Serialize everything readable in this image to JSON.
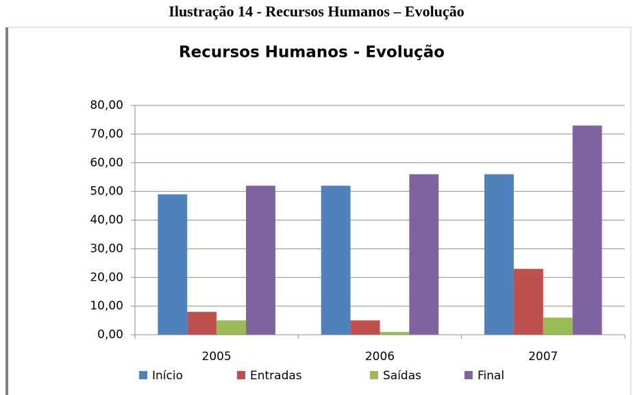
{
  "caption": "Ilustração 14 - Recursos Humanos – Evolução",
  "chart_data": {
    "type": "bar",
    "title": "Recursos Humanos - Evolução",
    "categories": [
      "2005",
      "2006",
      "2007"
    ],
    "series": [
      {
        "name": "Início",
        "color": "#4f81bd",
        "values": [
          49,
          52,
          56
        ]
      },
      {
        "name": "Entradas",
        "color": "#c0504d",
        "values": [
          8,
          5,
          23
        ]
      },
      {
        "name": "Saídas",
        "color": "#9bbb59",
        "values": [
          5,
          1,
          6
        ]
      },
      {
        "name": "Final",
        "color": "#8064a2",
        "values": [
          52,
          56,
          73
        ]
      }
    ],
    "ylim": [
      0,
      80
    ],
    "yticks": [
      {
        "value": 0,
        "label": "0,00"
      },
      {
        "value": 10,
        "label": "10,00"
      },
      {
        "value": 20,
        "label": "20,00"
      },
      {
        "value": 30,
        "label": "30,00"
      },
      {
        "value": 40,
        "label": "40,00"
      },
      {
        "value": 50,
        "label": "50,00"
      },
      {
        "value": 60,
        "label": "60,00"
      },
      {
        "value": 70,
        "label": "70,00"
      },
      {
        "value": 80,
        "label": "80,00"
      }
    ],
    "grid": true,
    "legend": "bottom"
  }
}
